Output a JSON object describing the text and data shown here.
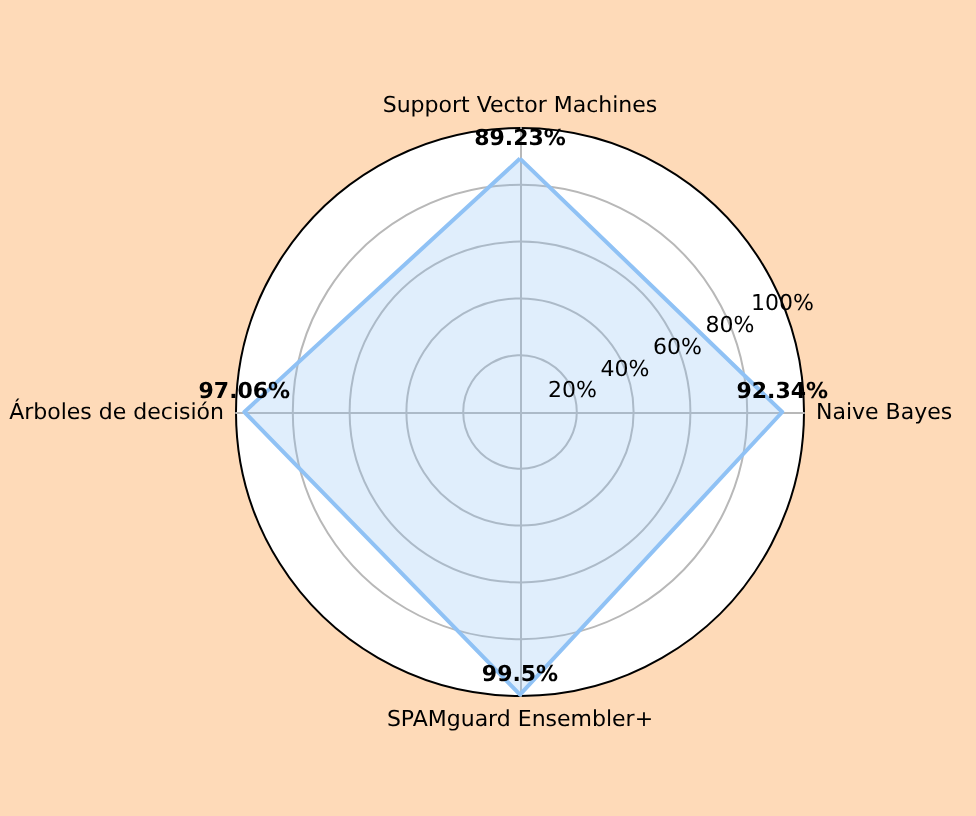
{
  "chart_data": {
    "type": "radar",
    "categories": [
      "Support Vector Machines",
      "Naive Bayes",
      "SPAMguard Ensembler+",
      "Árboles de decisión"
    ],
    "series": [
      {
        "color": "#90c2f5",
        "values": [
          89.23,
          92.34,
          99.5,
          97.06
        ],
        "value_labels": [
          "89.23%",
          "92.34%",
          "99.5%",
          "97.06%"
        ]
      }
    ],
    "ylim": [
      0,
      100
    ],
    "yticks": [
      {
        "value": 20,
        "label": "20%"
      },
      {
        "value": 40,
        "label": "40%"
      },
      {
        "value": 60,
        "label": "60%"
      },
      {
        "value": 80,
        "label": "80%"
      },
      {
        "value": 100,
        "label": "100%"
      }
    ],
    "grid": true,
    "marker": "none"
  }
}
